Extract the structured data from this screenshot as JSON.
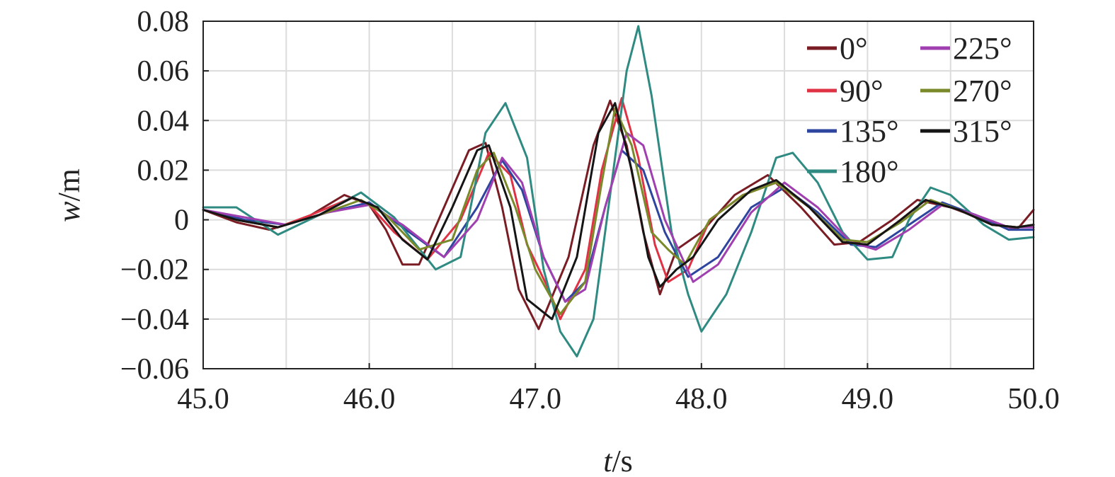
{
  "chart_data": {
    "type": "line",
    "xlabel": {
      "italic": "t",
      "rest": "/s"
    },
    "ylabel": {
      "italic": "w",
      "rest": "/m"
    },
    "xlim": [
      45.0,
      50.0
    ],
    "ylim": [
      -0.06,
      0.08
    ],
    "xticks": [
      "45.0",
      "46.0",
      "47.0",
      "48.0",
      "49.0",
      "50.0"
    ],
    "yticks": [
      "0.08",
      "0.06",
      "0.04",
      "0.02",
      "0",
      "−0.02",
      "−0.04",
      "−0.06"
    ],
    "grid": true,
    "legend_position": "top-right",
    "series": [
      {
        "name": "0°",
        "color": "#7a1c24",
        "points": [
          [
            45.0,
            0.004
          ],
          [
            45.2,
            -0.001
          ],
          [
            45.4,
            -0.004
          ],
          [
            45.6,
            0.0
          ],
          [
            45.85,
            0.01
          ],
          [
            46.0,
            0.006
          ],
          [
            46.1,
            -0.004
          ],
          [
            46.2,
            -0.018
          ],
          [
            46.3,
            -0.018
          ],
          [
            46.45,
            0.005
          ],
          [
            46.6,
            0.028
          ],
          [
            46.7,
            0.031
          ],
          [
            46.8,
            0.005
          ],
          [
            46.9,
            -0.028
          ],
          [
            47.02,
            -0.044
          ],
          [
            47.2,
            -0.015
          ],
          [
            47.35,
            0.03
          ],
          [
            47.45,
            0.048
          ],
          [
            47.55,
            0.03
          ],
          [
            47.65,
            -0.005
          ],
          [
            47.75,
            -0.03
          ],
          [
            47.85,
            -0.012
          ],
          [
            48.0,
            -0.005
          ],
          [
            48.2,
            0.01
          ],
          [
            48.4,
            0.018
          ],
          [
            48.6,
            0.005
          ],
          [
            48.8,
            -0.01
          ],
          [
            48.95,
            -0.009
          ],
          [
            49.15,
            0.0
          ],
          [
            49.3,
            0.008
          ],
          [
            49.5,
            0.005
          ],
          [
            49.7,
            0.0
          ],
          [
            49.9,
            -0.004
          ],
          [
            50.0,
            0.004
          ]
        ]
      },
      {
        "name": "90°",
        "color": "#e03245",
        "points": [
          [
            45.0,
            0.004
          ],
          [
            45.2,
            0.0
          ],
          [
            45.45,
            -0.003
          ],
          [
            45.65,
            0.002
          ],
          [
            45.9,
            0.009
          ],
          [
            46.0,
            0.006
          ],
          [
            46.15,
            -0.005
          ],
          [
            46.35,
            -0.016
          ],
          [
            46.55,
            0.0
          ],
          [
            46.72,
            0.027
          ],
          [
            46.85,
            0.018
          ],
          [
            46.95,
            -0.01
          ],
          [
            47.08,
            -0.028
          ],
          [
            47.15,
            -0.04
          ],
          [
            47.3,
            -0.02
          ],
          [
            47.4,
            0.02
          ],
          [
            47.52,
            0.049
          ],
          [
            47.62,
            0.025
          ],
          [
            47.72,
            -0.01
          ],
          [
            47.8,
            -0.025
          ],
          [
            47.92,
            -0.02
          ],
          [
            48.05,
            0.0
          ],
          [
            48.25,
            0.01
          ],
          [
            48.45,
            0.015
          ],
          [
            48.65,
            0.005
          ],
          [
            48.85,
            -0.009
          ],
          [
            49.0,
            -0.01
          ],
          [
            49.2,
            0.0
          ],
          [
            49.35,
            0.008
          ],
          [
            49.55,
            0.004
          ],
          [
            49.75,
            -0.002
          ],
          [
            49.9,
            -0.003
          ],
          [
            50.0,
            -0.002
          ]
        ]
      },
      {
        "name": "135°",
        "color": "#2e45a0",
        "points": [
          [
            45.0,
            0.004
          ],
          [
            45.25,
            0.0
          ],
          [
            45.5,
            -0.002
          ],
          [
            45.75,
            0.003
          ],
          [
            46.0,
            0.007
          ],
          [
            46.2,
            -0.003
          ],
          [
            46.45,
            -0.015
          ],
          [
            46.65,
            0.005
          ],
          [
            46.8,
            0.024
          ],
          [
            46.92,
            0.012
          ],
          [
            47.05,
            -0.015
          ],
          [
            47.18,
            -0.033
          ],
          [
            47.3,
            -0.025
          ],
          [
            47.42,
            0.005
          ],
          [
            47.52,
            0.028
          ],
          [
            47.65,
            0.02
          ],
          [
            47.78,
            -0.005
          ],
          [
            47.92,
            -0.023
          ],
          [
            48.1,
            -0.015
          ],
          [
            48.3,
            0.005
          ],
          [
            48.5,
            0.013
          ],
          [
            48.7,
            0.003
          ],
          [
            48.9,
            -0.01
          ],
          [
            49.05,
            -0.011
          ],
          [
            49.25,
            -0.002
          ],
          [
            49.45,
            0.007
          ],
          [
            49.65,
            0.002
          ],
          [
            49.85,
            -0.004
          ],
          [
            50.0,
            -0.004
          ]
        ]
      },
      {
        "name": "180°",
        "color": "#2f8a82",
        "points": [
          [
            45.0,
            0.005
          ],
          [
            45.2,
            0.005
          ],
          [
            45.45,
            -0.006
          ],
          [
            45.7,
            0.002
          ],
          [
            45.95,
            0.011
          ],
          [
            46.15,
            0.001
          ],
          [
            46.4,
            -0.02
          ],
          [
            46.55,
            -0.015
          ],
          [
            46.7,
            0.035
          ],
          [
            46.82,
            0.047
          ],
          [
            46.95,
            0.025
          ],
          [
            47.05,
            -0.02
          ],
          [
            47.15,
            -0.045
          ],
          [
            47.25,
            -0.055
          ],
          [
            47.35,
            -0.04
          ],
          [
            47.45,
            0.01
          ],
          [
            47.55,
            0.06
          ],
          [
            47.62,
            0.078
          ],
          [
            47.7,
            0.05
          ],
          [
            47.82,
            -0.005
          ],
          [
            47.92,
            -0.03
          ],
          [
            48.0,
            -0.045
          ],
          [
            48.15,
            -0.03
          ],
          [
            48.3,
            -0.005
          ],
          [
            48.45,
            0.025
          ],
          [
            48.55,
            0.027
          ],
          [
            48.7,
            0.015
          ],
          [
            48.85,
            -0.005
          ],
          [
            49.0,
            -0.016
          ],
          [
            49.15,
            -0.015
          ],
          [
            49.25,
            0.0
          ],
          [
            49.38,
            0.013
          ],
          [
            49.5,
            0.01
          ],
          [
            49.7,
            -0.002
          ],
          [
            49.85,
            -0.008
          ],
          [
            50.0,
            -0.007
          ]
        ]
      },
      {
        "name": "225°",
        "color": "#a040b0",
        "points": [
          [
            45.0,
            0.004
          ],
          [
            45.25,
            0.001
          ],
          [
            45.5,
            -0.002
          ],
          [
            45.75,
            0.003
          ],
          [
            46.0,
            0.006
          ],
          [
            46.2,
            -0.002
          ],
          [
            46.45,
            -0.015
          ],
          [
            46.65,
            0.0
          ],
          [
            46.8,
            0.025
          ],
          [
            46.92,
            0.015
          ],
          [
            47.05,
            -0.015
          ],
          [
            47.18,
            -0.033
          ],
          [
            47.3,
            -0.028
          ],
          [
            47.42,
            0.005
          ],
          [
            47.55,
            0.035
          ],
          [
            47.65,
            0.03
          ],
          [
            47.78,
            0.0
          ],
          [
            47.95,
            -0.025
          ],
          [
            48.1,
            -0.018
          ],
          [
            48.3,
            0.003
          ],
          [
            48.5,
            0.015
          ],
          [
            48.7,
            0.005
          ],
          [
            48.9,
            -0.009
          ],
          [
            49.05,
            -0.012
          ],
          [
            49.25,
            -0.004
          ],
          [
            49.45,
            0.006
          ],
          [
            49.65,
            0.002
          ],
          [
            49.85,
            -0.003
          ],
          [
            50.0,
            -0.003
          ]
        ]
      },
      {
        "name": "270°",
        "color": "#7a8a2a",
        "points": [
          [
            45.0,
            0.004
          ],
          [
            45.2,
            0.0
          ],
          [
            45.45,
            -0.003
          ],
          [
            45.7,
            0.002
          ],
          [
            45.95,
            0.008
          ],
          [
            46.1,
            0.002
          ],
          [
            46.3,
            -0.012
          ],
          [
            46.5,
            -0.008
          ],
          [
            46.65,
            0.02
          ],
          [
            46.75,
            0.027
          ],
          [
            46.88,
            0.005
          ],
          [
            47.0,
            -0.02
          ],
          [
            47.15,
            -0.038
          ],
          [
            47.3,
            -0.025
          ],
          [
            47.4,
            0.015
          ],
          [
            47.48,
            0.045
          ],
          [
            47.58,
            0.03
          ],
          [
            47.7,
            -0.005
          ],
          [
            47.8,
            -0.012
          ],
          [
            47.9,
            -0.018
          ],
          [
            48.05,
            0.0
          ],
          [
            48.25,
            0.01
          ],
          [
            48.45,
            0.015
          ],
          [
            48.65,
            0.005
          ],
          [
            48.85,
            -0.008
          ],
          [
            49.0,
            -0.009
          ],
          [
            49.2,
            -0.001
          ],
          [
            49.38,
            0.008
          ],
          [
            49.55,
            0.004
          ],
          [
            49.75,
            -0.002
          ],
          [
            49.9,
            -0.003
          ],
          [
            50.0,
            -0.002
          ]
        ]
      },
      {
        "name": "315°",
        "color": "#151515",
        "points": [
          [
            45.0,
            0.004
          ],
          [
            45.2,
            0.0
          ],
          [
            45.45,
            -0.003
          ],
          [
            45.7,
            0.002
          ],
          [
            45.9,
            0.009
          ],
          [
            46.05,
            0.005
          ],
          [
            46.2,
            -0.008
          ],
          [
            46.35,
            -0.016
          ],
          [
            46.5,
            0.005
          ],
          [
            46.65,
            0.028
          ],
          [
            46.72,
            0.03
          ],
          [
            46.85,
            0.005
          ],
          [
            46.95,
            -0.032
          ],
          [
            47.1,
            -0.04
          ],
          [
            47.25,
            -0.015
          ],
          [
            47.38,
            0.035
          ],
          [
            47.48,
            0.047
          ],
          [
            47.58,
            0.02
          ],
          [
            47.68,
            -0.015
          ],
          [
            47.75,
            -0.027
          ],
          [
            47.85,
            -0.02
          ],
          [
            47.95,
            -0.015
          ],
          [
            48.1,
            0.0
          ],
          [
            48.3,
            0.012
          ],
          [
            48.45,
            0.016
          ],
          [
            48.65,
            0.005
          ],
          [
            48.85,
            -0.009
          ],
          [
            49.0,
            -0.01
          ],
          [
            49.2,
            0.0
          ],
          [
            49.35,
            0.008
          ],
          [
            49.55,
            0.004
          ],
          [
            49.75,
            -0.002
          ],
          [
            49.9,
            -0.003
          ],
          [
            50.0,
            -0.002
          ]
        ]
      }
    ]
  }
}
